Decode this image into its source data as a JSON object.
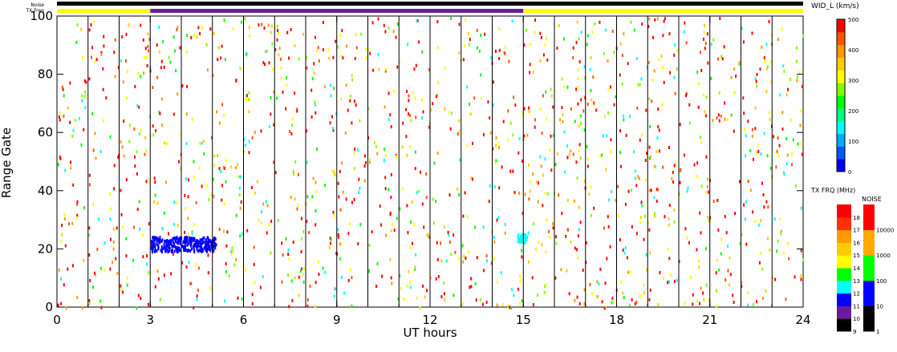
{
  "chart_data": {
    "type": "scatter",
    "xlabel": "UT hours",
    "ylabel": "Range Gate",
    "xlim": [
      0,
      24
    ],
    "ylim": [
      0,
      100
    ],
    "x_ticks": [
      "0",
      "3",
      "6",
      "9",
      "12",
      "15",
      "18",
      "21",
      "24"
    ],
    "y_ticks": [
      "0",
      "20",
      "40",
      "60",
      "80",
      "100"
    ],
    "scan_boundaries_hours": [
      1,
      2,
      3,
      4,
      5,
      6,
      7,
      8,
      9,
      10,
      11,
      12,
      13,
      14,
      15,
      16,
      17,
      18,
      19,
      20,
      21,
      22,
      23
    ],
    "top_bars": {
      "noise_label": "Noise",
      "txfreq_label": "TX Freq",
      "txfreq_segments": [
        {
          "from": 0,
          "to": 3,
          "color": "#ffff00"
        },
        {
          "from": 3,
          "to": 15,
          "color": "#6a1b9a"
        },
        {
          "from": 15,
          "to": 24,
          "color": "#ffff00"
        }
      ]
    },
    "main_scale": {
      "title": "WID_L (km/s)",
      "labels": [
        "0",
        "100",
        "200",
        "300",
        "400",
        "500"
      ],
      "min": 0,
      "max": 500,
      "colors": [
        "#0000ff",
        "#0055ff",
        "#00aaff",
        "#00ffff",
        "#00ff80",
        "#00ff00",
        "#80ff00",
        "#ffff00",
        "#ffcc00",
        "#ff9900",
        "#ff5500",
        "#ff0000"
      ]
    },
    "tx_scale": {
      "title": "TX FRQ (MHz)",
      "labels": [
        "9",
        "10",
        "11",
        "12",
        "13",
        "14",
        "15",
        "16",
        "17",
        "18"
      ],
      "colors": [
        "#000000",
        "#6a1b9a",
        "#0000ff",
        "#00ffff",
        "#00ff00",
        "#ffff00",
        "#ffcc00",
        "#ff9900",
        "#ff3300",
        "#ff0000"
      ]
    },
    "noise_scale": {
      "title": "NOISE",
      "labels": [
        "1",
        "10",
        "100",
        "1000",
        "10000"
      ],
      "colors": [
        "#000000",
        "#0000ff",
        "#00ff00",
        "#ffaa00",
        "#ff0000"
      ]
    },
    "clusters": [
      {
        "x_from": 3.0,
        "x_to": 5.1,
        "y_center": 22,
        "spread": 2.5,
        "color": "#0000ff"
      },
      {
        "x_from": 14.8,
        "x_to": 15.1,
        "y_center": 24,
        "spread": 1.5,
        "color": "#00ffff"
      }
    ]
  }
}
